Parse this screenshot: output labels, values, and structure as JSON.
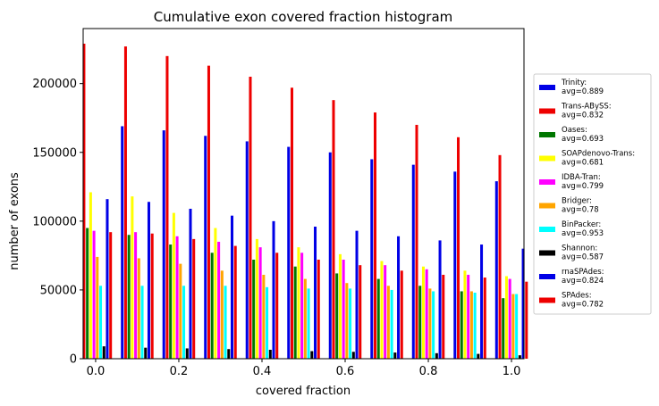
{
  "chart_data": {
    "type": "bar",
    "title": "Cumulative exon covered fraction histogram",
    "xlabel": "covered fraction",
    "ylabel": "number of exons",
    "xlim": [
      -0.03,
      1.03
    ],
    "ylim": [
      0,
      240000
    ],
    "xticks": [
      0.0,
      0.2,
      0.4,
      0.6,
      0.8,
      1.0
    ],
    "xtick_labels": [
      "0.0",
      "0.2",
      "0.4",
      "0.6",
      "0.8",
      "1.0"
    ],
    "yticks": [
      0,
      50000,
      100000,
      150000,
      200000
    ],
    "ytick_labels": [
      "0",
      "50000",
      "100000",
      "150000",
      "200000"
    ],
    "categories": [
      0.0,
      0.1,
      0.2,
      0.3,
      0.4,
      0.5,
      0.6,
      0.7,
      0.8,
      0.9,
      1.0
    ],
    "legend_position": "right, outside plot",
    "grid": false,
    "series": [
      {
        "name": "Trinity:\navg=0.889",
        "color": "#0000e6",
        "values": [
          null,
          169000,
          166000,
          162000,
          158000,
          154000,
          150000,
          145000,
          141000,
          136000,
          129000
        ]
      },
      {
        "name": "Trans-ABySS:\navg=0.832",
        "color": "#ee0000",
        "values": [
          229000,
          227000,
          220000,
          213000,
          205000,
          197000,
          188000,
          179000,
          170000,
          161000,
          148000
        ]
      },
      {
        "name": "Oases:\navg=0.693",
        "color": "#007700",
        "values": [
          95000,
          90000,
          83000,
          77000,
          72000,
          67000,
          62000,
          58000,
          53000,
          49000,
          44000
        ]
      },
      {
        "name": "SOAPdenovo-Trans:\navg=0.681",
        "color": "#ffff00",
        "values": [
          121000,
          118000,
          106000,
          95000,
          87000,
          81000,
          76000,
          71000,
          67000,
          64000,
          60000
        ]
      },
      {
        "name": "IDBA-Tran:\navg=0.799",
        "color": "#ff00ff",
        "values": [
          93000,
          92000,
          89000,
          85000,
          81000,
          77000,
          72000,
          68000,
          65000,
          61000,
          58000
        ]
      },
      {
        "name": "Bridger:\navg=0.78",
        "color": "#ffa500",
        "values": [
          74000,
          73000,
          69000,
          64000,
          61000,
          58000,
          55000,
          53000,
          51000,
          49000,
          47000
        ]
      },
      {
        "name": "BinPacker:\navg=0.953",
        "color": "#00ffff",
        "values": [
          53000,
          53000,
          53000,
          53000,
          52000,
          51000,
          51000,
          50000,
          49000,
          48000,
          47000
        ]
      },
      {
        "name": "Shannon:\navg=0.587",
        "color": "#000000",
        "values": [
          9000,
          8000,
          7500,
          7000,
          6500,
          5500,
          5000,
          4500,
          4000,
          3500,
          2500
        ]
      },
      {
        "name": "rnaSPAdes:\navg=0.824",
        "color": "#0000e6",
        "values": [
          116000,
          114000,
          109000,
          104000,
          100000,
          96000,
          93000,
          89000,
          86000,
          83000,
          80000
        ]
      },
      {
        "name": "SPAdes:\navg=0.782",
        "color": "#ee0000",
        "values": [
          92000,
          91000,
          87000,
          82000,
          77000,
          72000,
          68000,
          64000,
          61000,
          59000,
          56000
        ]
      }
    ]
  }
}
